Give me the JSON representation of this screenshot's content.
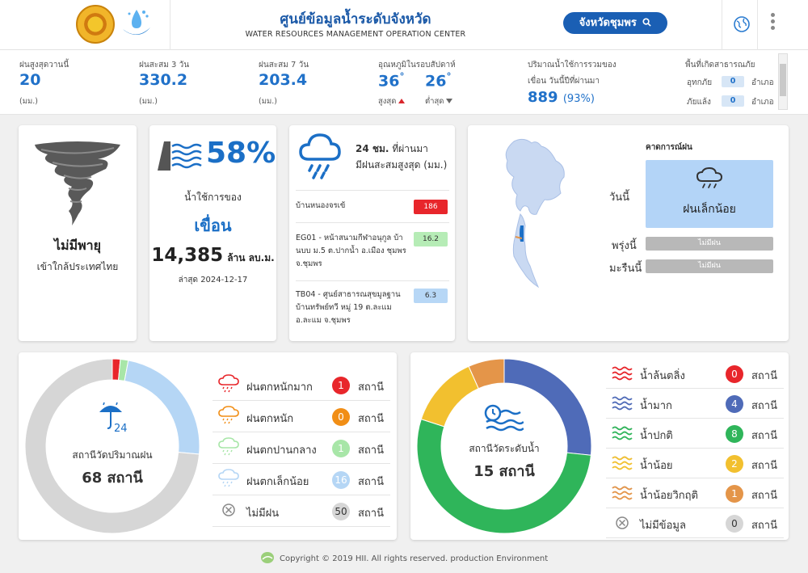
{
  "header": {
    "title_th": "ศูนย์ข้อมูลน้ำระดับจังหวัด",
    "title_en": "WATER RESOURCES MANAGEMENT OPERATION CENTER",
    "province_button": "จังหวัดชุมพร",
    "icons": [
      "province-seal-logo",
      "water-drop-logo",
      "search-icon",
      "globe-icon",
      "more-vertical-icon"
    ]
  },
  "stats": {
    "rain_today": {
      "label": "ฝนสูงสุดวานนี้",
      "value": "20",
      "unit": "(มม.)"
    },
    "rain_3d": {
      "label": "ฝนสะสม 3 วัน",
      "value": "330.2",
      "unit": "(มม.)"
    },
    "rain_7d": {
      "label": "ฝนสะสม 7 วัน",
      "value": "203.4",
      "unit": "(มม.)"
    },
    "temp": {
      "label": "อุณหภูมิในรอบสัปดาห์",
      "max": "36",
      "min": "26",
      "deg": "°",
      "max_label": "สูงสุด",
      "min_label": "ต่ำสุด"
    },
    "dam": {
      "label1": "ปริมาณน้ำใช้การรวมของ",
      "label2": "เขื่อน วันนี้ปีที่ผ่านมา",
      "value": "889",
      "pct": "(93%)"
    },
    "disaster": {
      "title": "พื้นที่เกิดสาธารณภัย",
      "flood_label": "อุทกภัย",
      "flood_value": "0",
      "drought_label": "ภัยแล้ง",
      "drought_value": "0",
      "unit": "อำเภอ"
    }
  },
  "storm": {
    "title": "ไม่มีพายุ",
    "subtitle": "เข้าใกล้ประเทศไทย"
  },
  "dam_card": {
    "pct": "58%",
    "label1": "น้ำใช้การของ",
    "label2": "เขื่อน",
    "volume": "14,385",
    "volume_unit": "ล้าน ลบ.ม.",
    "updated": "ล่าสุด 2024-12-17"
  },
  "rain24": {
    "title_bold": "24 ชม.",
    "title_rest": "ที่ผ่านมา",
    "title_line2": "มีฝนสะสมสูงสุด (มม.)",
    "stations": [
      {
        "name": "บ้านหนองจรเข้",
        "value": "186",
        "color": "#e8262b"
      },
      {
        "name": "EG01 - หน้าสนามกีฬาอนุกูล บ้านบบ ม.5 ต.ปากน้ำ อ.เมือง ชุมพร จ.ชุมพร",
        "value": "16.2",
        "color": "#b6ecb6"
      },
      {
        "name": "TB04 - ศูนย์สาธารณสุขมูลฐาน บ้านทรัพย์ทวี หมู่ 19 ต.ละแม อ.ละแม จ.ชุมพร",
        "value": "6.3",
        "color": "#b7d7f6"
      }
    ]
  },
  "forecast": {
    "title": "คาดการณ์ฝน",
    "today_label": "วันนี้",
    "today_value": "ฝนเล็กน้อย",
    "today_color": "#b3d4f7",
    "tomorrow_label": "พรุ่งนี้",
    "tomorrow_value": "ไม่มีฝน",
    "next_label": "มะรืนนี้",
    "next_value": "ไม่มีฝน"
  },
  "rain_stations": {
    "center_label": "สถานีวัดปริมาณฝน",
    "center_count": "68 สถานี",
    "icon_text": "24",
    "legend": [
      {
        "label": "ฝนตกหนักมาก",
        "count": "1",
        "color": "#e8262b",
        "unit": "สถานี",
        "icon": "cloud-heavy-rain-icon"
      },
      {
        "label": "ฝนตกหนัก",
        "count": "0",
        "color": "#f18e16",
        "unit": "สถานี",
        "icon": "cloud-rain-icon"
      },
      {
        "label": "ฝนตกปานกลาง",
        "count": "1",
        "color": "#a8e6a8",
        "unit": "สถานี",
        "icon": "cloud-moderate-rain-icon"
      },
      {
        "label": "ฝนตกเล็กน้อย",
        "count": "16",
        "color": "#b5d6f5",
        "unit": "สถานี",
        "icon": "cloud-light-rain-icon"
      },
      {
        "label": "ไม่มีฝน",
        "count": "50",
        "color": "#d6d6d6",
        "unit": "สถานี",
        "icon": "no-data-icon"
      }
    ]
  },
  "water_stations": {
    "center_label": "สถานีวัดระดับน้ำ",
    "center_count": "15 สถานี",
    "legend": [
      {
        "label": "น้ำล้นตลิ่ง",
        "count": "0",
        "color": "#e8262b",
        "unit": "สถานี",
        "icon": "wave-red-icon"
      },
      {
        "label": "น้ำมาก",
        "count": "4",
        "color": "#4f6bb8",
        "unit": "สถานี",
        "icon": "wave-blue-icon"
      },
      {
        "label": "น้ำปกติ",
        "count": "8",
        "color": "#2fb55a",
        "unit": "สถานี",
        "icon": "wave-green-icon"
      },
      {
        "label": "น้ำน้อย",
        "count": "2",
        "color": "#f2c02f",
        "unit": "สถานี",
        "icon": "wave-yellow-icon"
      },
      {
        "label": "น้ำน้อยวิกฤติ",
        "count": "1",
        "color": "#e49549",
        "unit": "สถานี",
        "icon": "wave-orange-icon"
      },
      {
        "label": "ไม่มีข้อมูล",
        "count": "0",
        "color": "#d6d6d6",
        "unit": "สถานี",
        "icon": "no-data-icon"
      }
    ]
  },
  "chart_data": [
    {
      "type": "pie",
      "title": "",
      "labels": [
        "ฝนตกหนักมาก",
        "ฝนตกหนัก",
        "ฝนตกปานกลาง",
        "ฝนตกเล็กน้อย",
        "ไม่มีฝน"
      ],
      "values": [
        1,
        0,
        1,
        16,
        50
      ],
      "colors": [
        "#e8262b",
        "#f18e16",
        "#a8e6a8",
        "#b5d6f5",
        "#d6d6d6"
      ]
    },
    {
      "type": "pie",
      "title": "",
      "labels": [
        "น้ำล้นตลิ่ง",
        "น้ำมาก",
        "น้ำปกติ",
        "น้ำน้อย",
        "น้ำน้อยวิกฤติ",
        "ไม่มีข้อมูล"
      ],
      "values": [
        0,
        4,
        8,
        2,
        1,
        0
      ],
      "colors": [
        "#e8262b",
        "#4f6bb8",
        "#2fb55a",
        "#f2c02f",
        "#e49549",
        "#d6d6d6"
      ]
    }
  ],
  "footer": {
    "text": "Copyright © 2019 HII. All rights reserved. production Environment"
  }
}
